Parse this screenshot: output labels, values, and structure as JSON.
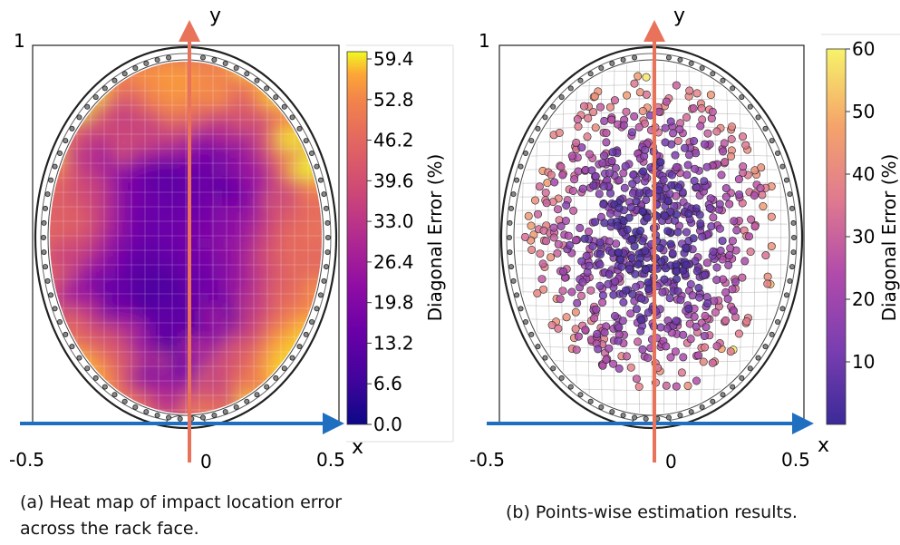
{
  "captions": {
    "a": "(a) Heat map of impact location error across the rack face.",
    "b": "(b) Points-wise estimation results."
  },
  "chart_data": [
    {
      "type": "heatmap",
      "panel": "a",
      "axis_labels": {
        "x": "x",
        "y": "y"
      },
      "x_ticks": [
        "-0.5",
        "0",
        "0.5"
      ],
      "y_ticks": [
        "1"
      ],
      "xlim": [
        -0.5,
        0.5
      ],
      "ylim": [
        0,
        1
      ],
      "colorbar": {
        "label": "Diagonal Error (%)",
        "colormap": "plasma",
        "range": [
          0,
          59.4
        ],
        "ticks": [
          "59.4",
          "52.8",
          "46.2",
          "39.6",
          "33.0",
          "26.4",
          "19.8",
          "13.2",
          "6.6",
          "0.0"
        ]
      },
      "description": "Low error (dark purple, ~5-15%) concentrated in the center-left interior; higher error (orange/yellow, ~40-59%) along the outer boundary, especially top-center, bottom-left and bottom-right corners.",
      "regions": [
        {
          "x": -0.15,
          "y": 0.45,
          "value": 8
        },
        {
          "x": -0.05,
          "y": 0.55,
          "value": 12
        },
        {
          "x": 0.1,
          "y": 0.5,
          "value": 18
        },
        {
          "x": -0.02,
          "y": 0.92,
          "value": 55
        },
        {
          "x": -0.38,
          "y": 0.12,
          "value": 57
        },
        {
          "x": 0.38,
          "y": 0.17,
          "value": 58
        },
        {
          "x": 0.4,
          "y": 0.45,
          "value": 46
        },
        {
          "x": -0.42,
          "y": 0.55,
          "value": 44
        }
      ]
    },
    {
      "type": "scatter",
      "panel": "b",
      "axis_labels": {
        "x": "x",
        "y": "y"
      },
      "x_ticks": [
        "-0.5",
        "0",
        "0.5"
      ],
      "y_ticks": [
        "1"
      ],
      "xlim": [
        -0.5,
        0.5
      ],
      "ylim": [
        0,
        1
      ],
      "colorbar": {
        "label": "Diagonal Error (%)",
        "colormap": "plasma",
        "range": [
          0,
          60
        ],
        "ticks": [
          "60",
          "50",
          "40",
          "30",
          "20",
          "10"
        ]
      },
      "description": "Several hundred estimation points inside the rack outline; points near the center are dark purple (~5-15% error), points toward the outline are pink/orange (~30-45%), a few yellow outliers near the top and lower right.",
      "point_count_approx": 900,
      "outliers": [
        {
          "x": -0.02,
          "y": 0.95,
          "value": 58
        },
        {
          "x": 0.3,
          "y": 0.2,
          "value": 59
        }
      ]
    }
  ]
}
